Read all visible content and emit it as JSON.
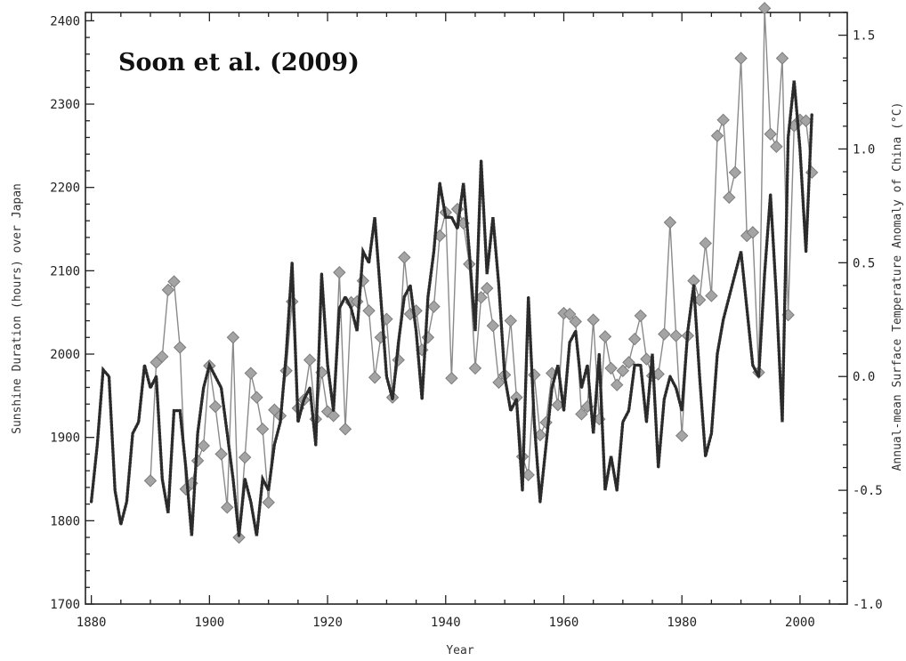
{
  "chart_data": {
    "type": "line",
    "title": "Soon et al. (2009)",
    "xlabel": "Year",
    "ylabel_left": "Sunshine Duration (hours) over Japan",
    "ylabel_right": "Annual-mean Surface Temperature Anomaly of China (°C)",
    "xlim": [
      1879,
      2008
    ],
    "ylim_left": [
      1700,
      2410
    ],
    "ylim_right": [
      -1.0,
      1.6
    ],
    "x_ticks": [
      "1880",
      "1900",
      "1920",
      "1940",
      "1960",
      "1980",
      "2000"
    ],
    "y_left_ticks": [
      "1700",
      "1800",
      "1900",
      "2000",
      "2100",
      "2200",
      "2300",
      "2400"
    ],
    "y_right_ticks": [
      "-1.0",
      "-0.5",
      "0.0",
      "0.5",
      "1.0",
      "1.5"
    ],
    "grid": false,
    "series": [
      {
        "name": "",
        "axis": "left",
        "style": "solid-diamond",
        "color": "#8a8a8a",
        "marker_color": "#a4a4a4",
        "x": [
          1890,
          1891,
          1892,
          1893,
          1894,
          1895,
          1896,
          1897,
          1898,
          1899,
          1900,
          1901,
          1902,
          1903,
          1904,
          1905,
          1906,
          1907,
          1908,
          1909,
          1910,
          1911,
          1912,
          1913,
          1914,
          1915,
          1916,
          1917,
          1918,
          1919,
          1920,
          1921,
          1922,
          1923,
          1924,
          1925,
          1926,
          1927,
          1928,
          1929,
          1930,
          1931,
          1932,
          1933,
          1934,
          1935,
          1936,
          1937,
          1938,
          1939,
          1940,
          1941,
          1942,
          1943,
          1944,
          1945,
          1946,
          1947,
          1948,
          1949,
          1950,
          1951,
          1952,
          1953,
          1954,
          1955,
          1956,
          1957,
          1958,
          1959,
          1960,
          1961,
          1962,
          1963,
          1964,
          1965,
          1966,
          1967,
          1968,
          1969,
          1970,
          1971,
          1972,
          1973,
          1974,
          1975,
          1976,
          1977,
          1978,
          1979,
          1980,
          1981,
          1982,
          1983,
          1984,
          1985,
          1986,
          1987,
          1988,
          1989,
          1990,
          1991,
          1992,
          1993,
          1994,
          1995,
          1996,
          1997,
          1998,
          1999,
          2000,
          2001,
          2002
        ],
        "y": [
          1848,
          1990,
          1997,
          2077,
          2087,
          2008,
          1838,
          1845,
          1872,
          1890,
          1986,
          1937,
          1880,
          1816,
          2020,
          1780,
          1876,
          1977,
          1948,
          1910,
          1822,
          1933,
          1926,
          1980,
          2063,
          1935,
          1945,
          1993,
          1922,
          1978,
          1931,
          1926,
          2098,
          1910,
          2062,
          2063,
          2088,
          2052,
          1972,
          2020,
          2042,
          1948,
          1993,
          2116,
          2048,
          2052,
          2005,
          2020,
          2057,
          2142,
          2170,
          1971,
          2174,
          2157,
          2108,
          1983,
          2068,
          2079,
          2034,
          1966,
          1975,
          2040,
          1948,
          1877,
          1855,
          1975,
          1903,
          1918,
          1977,
          1939,
          2049,
          2048,
          2039,
          1928,
          1937,
          2041,
          1922,
          2021,
          1983,
          1963,
          1980,
          1990,
          2018,
          2046,
          1994,
          1974,
          1976,
          2024,
          2158,
          2022,
          1902,
          2022,
          2088,
          2065,
          2133,
          2070,
          2262,
          2281,
          2188,
          2218,
          2355,
          2142,
          2146,
          1978,
          2415,
          2264,
          2249,
          2355,
          2047,
          2274,
          2281,
          2280,
          2218
        ]
      },
      {
        "name": "",
        "axis": "right",
        "style": "dotted",
        "color": "#2b2b2b",
        "x": [
          1880,
          1881,
          1882,
          1883,
          1884,
          1885,
          1886,
          1887,
          1888,
          1889,
          1890,
          1891,
          1892,
          1893,
          1894,
          1895,
          1896,
          1897,
          1898,
          1899,
          1900,
          1901,
          1902,
          1903,
          1904,
          1905,
          1906,
          1907,
          1908,
          1909,
          1910,
          1911,
          1912,
          1913,
          1914,
          1915,
          1916,
          1917,
          1918,
          1919,
          1920,
          1921,
          1922,
          1923,
          1924,
          1925,
          1926,
          1927,
          1928,
          1929,
          1930,
          1931,
          1932,
          1933,
          1934,
          1935,
          1936,
          1937,
          1938,
          1939,
          1940,
          1941,
          1942,
          1943,
          1944,
          1945,
          1946,
          1947,
          1948,
          1949,
          1950,
          1951,
          1952,
          1953,
          1954,
          1955,
          1956,
          1957,
          1958,
          1959,
          1960,
          1961,
          1962,
          1963,
          1964,
          1965,
          1966,
          1967,
          1968,
          1969,
          1970,
          1971,
          1972,
          1973,
          1974,
          1975,
          1976,
          1977,
          1978,
          1979,
          1980,
          1981,
          1982,
          1983,
          1984,
          1985,
          1986,
          1987,
          1988,
          1989,
          1990,
          1991,
          1992,
          1993,
          1994,
          1995,
          1996,
          1997,
          1998,
          1999,
          2000,
          2001,
          2002
        ],
        "y": [
          -0.55,
          -0.3,
          0.03,
          0.0,
          -0.5,
          -0.65,
          -0.55,
          -0.25,
          -0.2,
          0.05,
          -0.05,
          0.0,
          -0.45,
          -0.6,
          -0.15,
          -0.15,
          -0.4,
          -0.7,
          -0.25,
          -0.05,
          0.05,
          0.0,
          -0.05,
          -0.25,
          -0.45,
          -0.7,
          -0.45,
          -0.55,
          -0.7,
          -0.45,
          -0.5,
          -0.3,
          -0.2,
          0.1,
          0.5,
          -0.2,
          -0.1,
          -0.05,
          -0.3,
          0.45,
          0.05,
          -0.15,
          0.3,
          0.35,
          0.3,
          0.2,
          0.55,
          0.5,
          0.7,
          0.35,
          0.0,
          -0.1,
          0.15,
          0.35,
          0.4,
          0.2,
          -0.1,
          0.35,
          0.55,
          0.85,
          0.7,
          0.7,
          0.65,
          0.85,
          0.55,
          0.2,
          0.95,
          0.45,
          0.7,
          0.4,
          0.0,
          -0.15,
          -0.1,
          -0.5,
          0.35,
          -0.2,
          -0.55,
          -0.3,
          -0.05,
          0.05,
          -0.15,
          0.15,
          0.2,
          -0.05,
          0.05,
          -0.25,
          0.1,
          -0.5,
          -0.35,
          -0.5,
          -0.2,
          -0.15,
          0.05,
          0.05,
          -0.2,
          0.1,
          -0.4,
          -0.1,
          0.0,
          -0.05,
          -0.15,
          0.2,
          0.4,
          0.0,
          -0.35,
          -0.25,
          0.1,
          0.25,
          0.35,
          0.45,
          0.55,
          0.3,
          0.05,
          0.0,
          0.45,
          0.8,
          0.35,
          -0.2,
          1.05,
          1.3,
          1.0,
          0.55,
          1.15
        ]
      }
    ]
  }
}
